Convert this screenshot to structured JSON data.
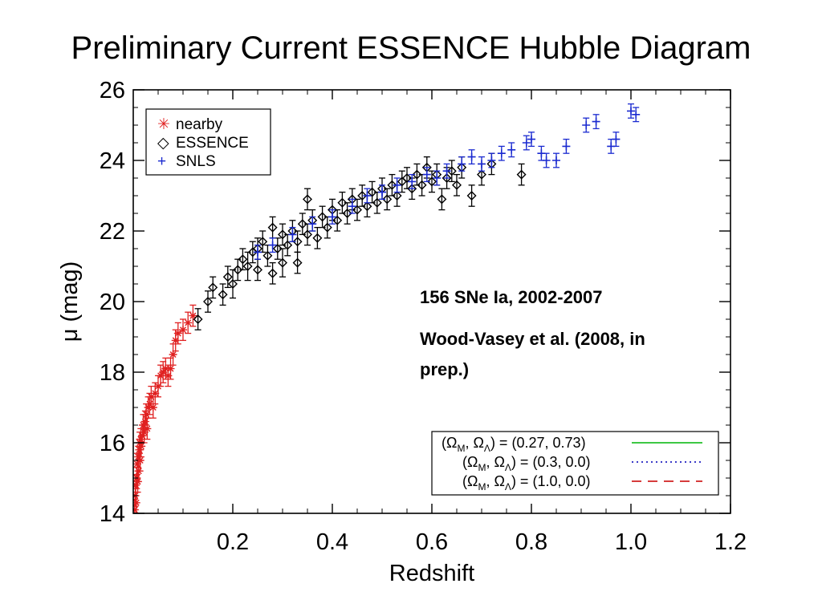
{
  "chart_data": {
    "type": "scatter",
    "title": "Preliminary Current ESSENCE Hubble Diagram",
    "xlabel": "Redshift",
    "ylabel": "μ (mag)",
    "xlim": [
      0.0,
      1.2
    ],
    "ylim": [
      14,
      26
    ],
    "xticks": [
      0.2,
      0.4,
      0.6,
      0.8,
      1.0,
      1.2
    ],
    "xtick_labels": [
      "0.2",
      "0.4",
      "0.6",
      "0.8",
      "1.0",
      "1.2"
    ],
    "yticks": [
      14,
      16,
      18,
      20,
      22,
      24,
      26
    ],
    "ytick_labels": [
      "14",
      "16",
      "18",
      "20",
      "22",
      "24",
      "26"
    ],
    "grid": false,
    "annotations": [
      {
        "text": "156 SNe Ia, 2002-2007"
      },
      {
        "text": "Wood-Vasey et al. (2008, in"
      },
      {
        "text": "prep.)"
      }
    ],
    "legend_points": {
      "placement": "top-left",
      "entries": [
        {
          "symbol": "✳",
          "label": "nearby",
          "color": "#e02020"
        },
        {
          "symbol": "◇",
          "label": "ESSENCE",
          "color": "#000000"
        },
        {
          "symbol": "+",
          "label": "SNLS",
          "color": "#1a2ad0"
        }
      ]
    },
    "legend_models": {
      "placement": "bottom-right",
      "entries": [
        {
          "om": "0.27",
          "ol": "0.73",
          "color": "#22c02a",
          "style": "solid"
        },
        {
          "om": "0.3",
          "ol": "0.0",
          "color": "#2020c0",
          "style": "dotted"
        },
        {
          "om": "1.0",
          "ol": "0.0",
          "color": "#d02020",
          "style": "dashed"
        }
      ]
    },
    "series": [
      {
        "name": "nearby",
        "marker": "asterisk",
        "color": "#e02020",
        "points": [
          [
            0.003,
            14.1,
            0.3
          ],
          [
            0.004,
            14.5,
            0.3
          ],
          [
            0.005,
            14.8,
            0.3
          ],
          [
            0.006,
            14.3,
            0.3
          ],
          [
            0.007,
            15.0,
            0.3
          ],
          [
            0.008,
            15.4,
            0.3
          ],
          [
            0.009,
            14.9,
            0.3
          ],
          [
            0.01,
            15.6,
            0.3
          ],
          [
            0.011,
            15.2,
            0.3
          ],
          [
            0.012,
            15.8,
            0.3
          ],
          [
            0.013,
            16.0,
            0.3
          ],
          [
            0.014,
            15.5,
            0.3
          ],
          [
            0.015,
            16.1,
            0.3
          ],
          [
            0.016,
            15.9,
            0.3
          ],
          [
            0.018,
            16.2,
            0.3
          ],
          [
            0.02,
            16.5,
            0.3
          ],
          [
            0.022,
            16.3,
            0.3
          ],
          [
            0.024,
            16.6,
            0.3
          ],
          [
            0.026,
            16.8,
            0.3
          ],
          [
            0.028,
            16.4,
            0.3
          ],
          [
            0.03,
            17.0,
            0.3
          ],
          [
            0.033,
            17.1,
            0.3
          ],
          [
            0.036,
            17.3,
            0.3
          ],
          [
            0.04,
            17.0,
            0.3
          ],
          [
            0.044,
            17.4,
            0.3
          ],
          [
            0.05,
            17.6,
            0.3
          ],
          [
            0.055,
            17.9,
            0.3
          ],
          [
            0.06,
            18.0,
            0.3
          ],
          [
            0.065,
            18.1,
            0.3
          ],
          [
            0.07,
            17.9,
            0.3
          ],
          [
            0.075,
            18.1,
            0.3
          ],
          [
            0.08,
            18.5,
            0.3
          ],
          [
            0.085,
            18.9,
            0.3
          ],
          [
            0.09,
            19.1,
            0.3
          ],
          [
            0.1,
            19.2,
            0.3
          ],
          [
            0.11,
            19.4,
            0.3
          ],
          [
            0.12,
            19.6,
            0.3
          ]
        ]
      },
      {
        "name": "ESSENCE",
        "marker": "diamond",
        "color": "#000000",
        "points": [
          [
            0.13,
            19.5,
            0.3
          ],
          [
            0.15,
            20.0,
            0.3
          ],
          [
            0.16,
            20.4,
            0.3
          ],
          [
            0.18,
            20.2,
            0.3
          ],
          [
            0.19,
            20.7,
            0.3
          ],
          [
            0.2,
            20.5,
            0.4
          ],
          [
            0.21,
            20.9,
            0.3
          ],
          [
            0.22,
            21.2,
            0.3
          ],
          [
            0.23,
            21.0,
            0.4
          ],
          [
            0.24,
            21.4,
            0.3
          ],
          [
            0.25,
            21.5,
            0.3
          ],
          [
            0.25,
            20.9,
            0.3
          ],
          [
            0.26,
            21.7,
            0.3
          ],
          [
            0.27,
            21.3,
            0.3
          ],
          [
            0.28,
            20.8,
            0.3
          ],
          [
            0.28,
            22.1,
            0.3
          ],
          [
            0.29,
            21.5,
            0.3
          ],
          [
            0.3,
            21.9,
            0.3
          ],
          [
            0.3,
            21.1,
            0.4
          ],
          [
            0.31,
            21.6,
            0.3
          ],
          [
            0.32,
            22.0,
            0.3
          ],
          [
            0.33,
            21.7,
            0.3
          ],
          [
            0.33,
            21.1,
            0.3
          ],
          [
            0.34,
            22.2,
            0.3
          ],
          [
            0.35,
            21.9,
            0.3
          ],
          [
            0.35,
            22.9,
            0.3
          ],
          [
            0.36,
            22.3,
            0.3
          ],
          [
            0.37,
            21.8,
            0.3
          ],
          [
            0.38,
            22.4,
            0.3
          ],
          [
            0.39,
            22.1,
            0.3
          ],
          [
            0.4,
            22.6,
            0.3
          ],
          [
            0.41,
            22.3,
            0.3
          ],
          [
            0.42,
            22.8,
            0.3
          ],
          [
            0.43,
            22.5,
            0.3
          ],
          [
            0.44,
            22.9,
            0.3
          ],
          [
            0.45,
            22.6,
            0.3
          ],
          [
            0.46,
            23.0,
            0.3
          ],
          [
            0.47,
            22.7,
            0.3
          ],
          [
            0.48,
            23.1,
            0.3
          ],
          [
            0.49,
            22.8,
            0.3
          ],
          [
            0.5,
            23.2,
            0.3
          ],
          [
            0.51,
            22.9,
            0.3
          ],
          [
            0.52,
            23.3,
            0.3
          ],
          [
            0.53,
            23.0,
            0.3
          ],
          [
            0.54,
            23.4,
            0.3
          ],
          [
            0.55,
            23.5,
            0.3
          ],
          [
            0.56,
            23.2,
            0.3
          ],
          [
            0.57,
            23.6,
            0.3
          ],
          [
            0.58,
            23.3,
            0.3
          ],
          [
            0.59,
            23.8,
            0.3
          ],
          [
            0.6,
            23.4,
            0.3
          ],
          [
            0.61,
            23.6,
            0.3
          ],
          [
            0.62,
            22.9,
            0.3
          ],
          [
            0.63,
            23.5,
            0.3
          ],
          [
            0.64,
            23.7,
            0.3
          ],
          [
            0.65,
            23.3,
            0.3
          ],
          [
            0.66,
            23.8,
            0.3
          ],
          [
            0.68,
            23.0,
            0.3
          ],
          [
            0.7,
            23.6,
            0.3
          ],
          [
            0.72,
            23.9,
            0.3
          ],
          [
            0.78,
            23.6,
            0.3
          ]
        ]
      },
      {
        "name": "SNLS",
        "marker": "plus",
        "color": "#1a2ad0",
        "points": [
          [
            0.25,
            21.4,
            0.2
          ],
          [
            0.28,
            21.6,
            0.2
          ],
          [
            0.32,
            21.9,
            0.2
          ],
          [
            0.36,
            22.2,
            0.2
          ],
          [
            0.4,
            22.4,
            0.2
          ],
          [
            0.44,
            22.7,
            0.2
          ],
          [
            0.47,
            23.0,
            0.2
          ],
          [
            0.5,
            23.1,
            0.2
          ],
          [
            0.53,
            23.3,
            0.2
          ],
          [
            0.56,
            23.4,
            0.2
          ],
          [
            0.59,
            23.6,
            0.2
          ],
          [
            0.61,
            23.5,
            0.2
          ],
          [
            0.63,
            23.7,
            0.2
          ],
          [
            0.66,
            23.9,
            0.2
          ],
          [
            0.68,
            24.1,
            0.2
          ],
          [
            0.7,
            23.9,
            0.2
          ],
          [
            0.72,
            24.0,
            0.2
          ],
          [
            0.74,
            24.2,
            0.2
          ],
          [
            0.76,
            24.3,
            0.2
          ],
          [
            0.79,
            24.5,
            0.2
          ],
          [
            0.8,
            24.6,
            0.2
          ],
          [
            0.82,
            24.2,
            0.2
          ],
          [
            0.83,
            24.0,
            0.2
          ],
          [
            0.85,
            24.0,
            0.2
          ],
          [
            0.87,
            24.4,
            0.2
          ],
          [
            0.91,
            25.0,
            0.2
          ],
          [
            0.93,
            25.1,
            0.2
          ],
          [
            0.96,
            24.4,
            0.2
          ],
          [
            0.97,
            24.6,
            0.2
          ],
          [
            1.0,
            25.4,
            0.2
          ],
          [
            1.01,
            25.3,
            0.2
          ]
        ]
      }
    ],
    "models": [
      {
        "om": 0.27,
        "ol": 0.73,
        "color": "#22c02a",
        "style": "solid"
      },
      {
        "om": 0.3,
        "ol": 0.0,
        "color": "#2020c0",
        "style": "dotted"
      },
      {
        "om": 1.0,
        "ol": 0.0,
        "color": "#d02020",
        "style": "dashed"
      }
    ]
  }
}
